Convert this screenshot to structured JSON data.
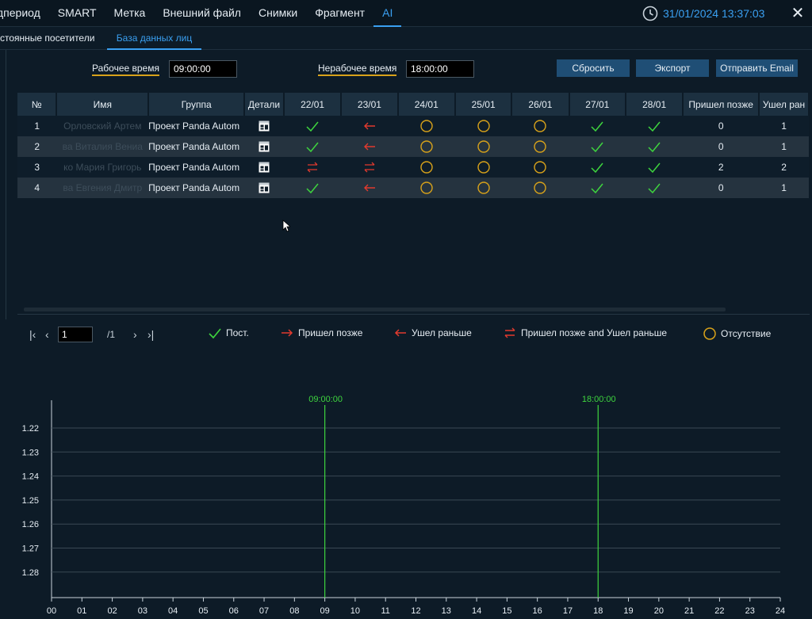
{
  "top_nav": {
    "tabs": [
      {
        "label": "дпериод",
        "active": false
      },
      {
        "label": "SMART",
        "active": false
      },
      {
        "label": "Метка",
        "active": false
      },
      {
        "label": "Внешний файл",
        "active": false
      },
      {
        "label": "Снимки",
        "active": false
      },
      {
        "label": "Фрагмент",
        "active": false
      },
      {
        "label": "AI",
        "active": true
      }
    ],
    "datetime": "31/01/2024 13:37:03",
    "accent_color": "#3aa0f2"
  },
  "sub_tabs": [
    {
      "label": "стоянные посетители",
      "active": false
    },
    {
      "label": "База данных лиц",
      "active": true
    }
  ],
  "controls": {
    "work_time_label": "Рабочее время",
    "work_time_value": "09:00:00",
    "off_time_label": "Нерабочее время",
    "off_time_value": "18:00:00",
    "reset_label": "Сбросить",
    "export_label": "Экспорт",
    "email_label": "Отправить Email"
  },
  "table": {
    "headers": [
      "№",
      "Имя",
      "Группа",
      "Детали",
      "22/01",
      "23/01",
      "24/01",
      "25/01",
      "26/01",
      "27/01",
      "28/01",
      "Пришел позже",
      "Ушел ран"
    ],
    "rows": [
      {
        "no": "1",
        "name": "Орловский Артем",
        "group": "Проект Panda Autom",
        "statuses": [
          "present",
          "left_early",
          "absent",
          "absent",
          "absent",
          "present",
          "present"
        ],
        "late": "0",
        "early": "1"
      },
      {
        "no": "2",
        "name": "ва Виталия Вениа",
        "group": "Проект Panda Autom",
        "statuses": [
          "present",
          "left_early",
          "absent",
          "absent",
          "absent",
          "present",
          "present"
        ],
        "late": "0",
        "early": "1"
      },
      {
        "no": "3",
        "name": "ко Мария Григорь",
        "group": "Проект Panda Autom",
        "statuses": [
          "late_and_early",
          "late_and_early",
          "absent",
          "absent",
          "absent",
          "present",
          "present"
        ],
        "late": "2",
        "early": "2"
      },
      {
        "no": "4",
        "name": "ва Евгения Дмитр",
        "group": "Проект Panda Autom",
        "statuses": [
          "present",
          "left_early",
          "absent",
          "absent",
          "absent",
          "present",
          "present"
        ],
        "late": "0",
        "early": "1"
      }
    ]
  },
  "pagination": {
    "current_page": "1",
    "total_pages": "/1"
  },
  "legend": [
    {
      "icon": "check-icon",
      "label": "Пост."
    },
    {
      "icon": "arrow-right-icon",
      "label": "Пришел позже"
    },
    {
      "icon": "arrow-left-icon",
      "label": "Ушел раньше"
    },
    {
      "icon": "arrows-swap-icon",
      "label": "Пришел позже and Ушел раньше"
    },
    {
      "icon": "circle-icon",
      "label": "Отсутствие"
    }
  ],
  "status_colors": {
    "present": "#3ed43e",
    "late": "#e23a2e",
    "absent": "#d8a21a"
  },
  "timeline": {
    "x_ticks": [
      "00",
      "01",
      "02",
      "03",
      "04",
      "05",
      "06",
      "07",
      "08",
      "09",
      "10",
      "11",
      "12",
      "13",
      "14",
      "15",
      "16",
      "17",
      "18",
      "19",
      "20",
      "21",
      "22",
      "23",
      "24"
    ],
    "y_ticks": [
      "1.22",
      "1.23",
      "1.24",
      "1.25",
      "1.26",
      "1.27",
      "1.28"
    ],
    "markers": [
      {
        "hour": 9,
        "label": "09:00:00"
      },
      {
        "hour": 18,
        "label": "18:00:00"
      }
    ],
    "marker_color": "#3ed43e"
  }
}
